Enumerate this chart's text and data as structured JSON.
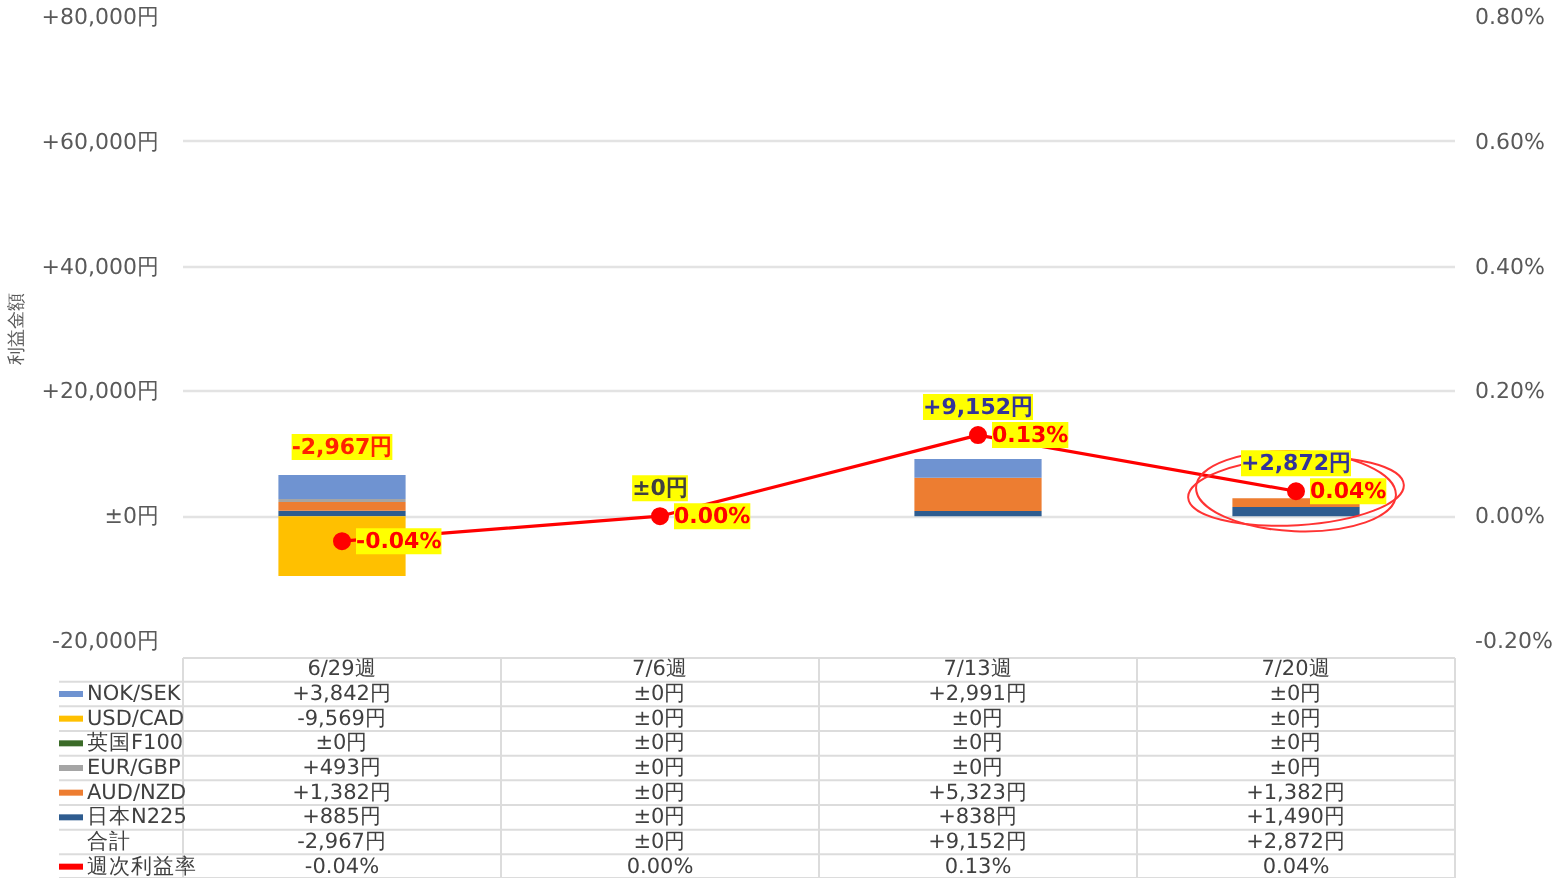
{
  "chart_data": {
    "type": "bar",
    "stacked": true,
    "ylabel": "利益金額",
    "categories": [
      "6/29週",
      "7/6週",
      "7/13週",
      "7/20週"
    ],
    "series": [
      {
        "name": "日本N225",
        "color": "#2e5c8f",
        "values": [
          885,
          0,
          838,
          1490
        ],
        "value_labels": [
          "+885円",
          "±0円",
          "+838円",
          "+1,490円"
        ]
      },
      {
        "name": "AUD/NZD",
        "color": "#ed7d31",
        "values": [
          1382,
          0,
          5323,
          1382
        ],
        "value_labels": [
          "+1,382円",
          "±0円",
          "+5,323円",
          "+1,382円"
        ]
      },
      {
        "name": "EUR/GBP",
        "color": "#a5a5a5",
        "values": [
          493,
          0,
          0,
          0
        ],
        "value_labels": [
          "+493円",
          "±0円",
          "±0円",
          "±0円"
        ]
      },
      {
        "name": "英国F100",
        "color": "#3b6b28",
        "values": [
          0,
          0,
          0,
          0
        ],
        "value_labels": [
          "±0円",
          "±0円",
          "±0円",
          "±0円"
        ]
      },
      {
        "name": "USD/CAD",
        "color": "#ffc000",
        "values": [
          -9569,
          0,
          0,
          0
        ],
        "value_labels": [
          "-9,569円",
          "±0円",
          "±0円",
          "±0円"
        ]
      },
      {
        "name": "NOK/SEK",
        "color": "#6f93d1",
        "values": [
          3842,
          0,
          2991,
          0
        ],
        "value_labels": [
          "+3,842円",
          "±0円",
          "+2,991円",
          "±0円"
        ]
      },
      {
        "name": "週次利益率",
        "type": "line",
        "axis": "y2",
        "color": "#ff0000",
        "marker": "circle",
        "values": [
          -0.04,
          0.0,
          0.13,
          0.04
        ],
        "value_labels": [
          "-0.04%",
          "0.00%",
          "0.13%",
          "0.04%"
        ]
      }
    ],
    "totals": [
      "-2,967円",
      "±0円",
      "+9,152円",
      "+2,872円"
    ],
    "ylim": [
      -20000,
      80000
    ],
    "yticks": [
      {
        "value": -20000,
        "label": "-20,000円"
      },
      {
        "value": 0,
        "label": "±0円"
      },
      {
        "value": 20000,
        "label": "+20,000円"
      },
      {
        "value": 40000,
        "label": "+40,000円"
      },
      {
        "value": 60000,
        "label": "+60,000円"
      },
      {
        "value": 80000,
        "label": "+80,000円"
      }
    ],
    "y2lim": [
      -0.2,
      0.8
    ],
    "y2ticks": [
      {
        "value": -0.2,
        "label": "-0.20%"
      },
      {
        "value": 0,
        "label": "0.00%"
      },
      {
        "value": 0.2,
        "label": "0.20%"
      },
      {
        "value": 0.4,
        "label": "0.40%"
      },
      {
        "value": 0.6,
        "label": "0.60%"
      },
      {
        "value": 0.8,
        "label": "0.80%"
      }
    ],
    "grid": "y",
    "legend": "bottom",
    "annotations": [
      "合計"
    ]
  }
}
